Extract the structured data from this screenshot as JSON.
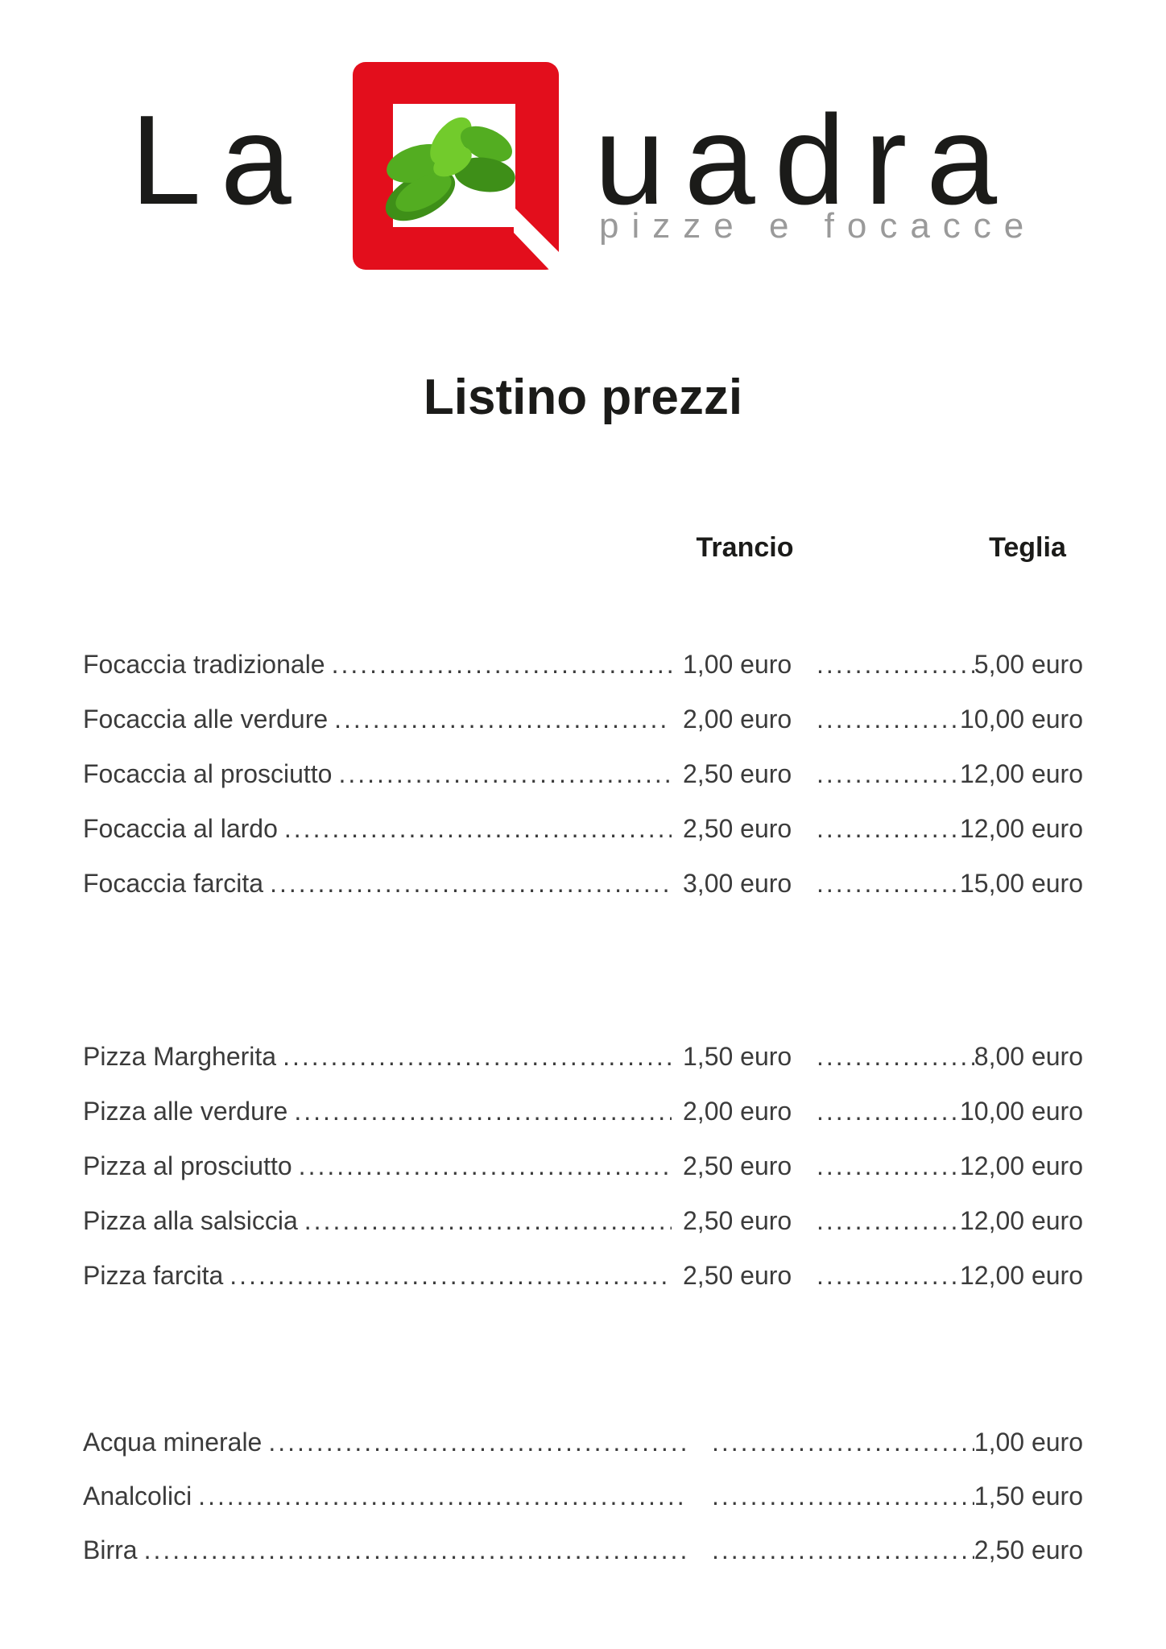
{
  "logo": {
    "prefix": "La",
    "suffix": "uadra",
    "tagline": "pizze e focacce"
  },
  "icons": {
    "square": "red-q-square-logo",
    "leaf": "basil-leaf-icon"
  },
  "title": "Listino prezzi",
  "columns": {
    "trancio": "Trancio",
    "teglia": "Teglia"
  },
  "menu": {
    "sections": [
      {
        "id": "focacce",
        "type": "two-price",
        "items": [
          {
            "name": "Focaccia tradizionale",
            "trancio": "1,00 euro",
            "teglia": "5,00 euro"
          },
          {
            "name": "Focaccia alle verdure",
            "trancio": "2,00 euro",
            "teglia": "10,00 euro"
          },
          {
            "name": "Focaccia al prosciutto",
            "trancio": "2,50 euro",
            "teglia": "12,00 euro"
          },
          {
            "name": "Focaccia al lardo",
            "trancio": "2,50 euro",
            "teglia": "12,00 euro"
          },
          {
            "name": "Focaccia farcita",
            "trancio": "3,00 euro",
            "teglia": "15,00 euro"
          }
        ]
      },
      {
        "id": "pizze",
        "type": "two-price",
        "items": [
          {
            "name": "Pizza Margherita",
            "trancio": "1,50 euro",
            "teglia": "8,00 euro"
          },
          {
            "name": "Pizza alle verdure",
            "trancio": "2,00 euro",
            "teglia": "10,00 euro"
          },
          {
            "name": "Pizza al prosciutto",
            "trancio": "2,50 euro",
            "teglia": "12,00 euro"
          },
          {
            "name": "Pizza alla salsiccia",
            "trancio": "2,50 euro",
            "teglia": "12,00 euro"
          },
          {
            "name": "Pizza farcita",
            "trancio": "2,50 euro",
            "teglia": "12,00 euro"
          }
        ]
      },
      {
        "id": "bevande",
        "type": "single-price",
        "items": [
          {
            "name": "Acqua minerale",
            "price": "1,00 euro"
          },
          {
            "name": "Analcolici",
            "price": "1,50 euro"
          },
          {
            "name": "Birra",
            "price": "2,50 euro"
          }
        ]
      }
    ]
  },
  "colors": {
    "logo_red": "#e30e1c",
    "leaf_green": "#53ad21",
    "leaf_green_light": "#72cb2c",
    "leaf_green_dark": "#3e8f18",
    "tagline_gray": "#9a9a9a",
    "text": "#3b3b3b",
    "heading": "#1b1b19"
  }
}
